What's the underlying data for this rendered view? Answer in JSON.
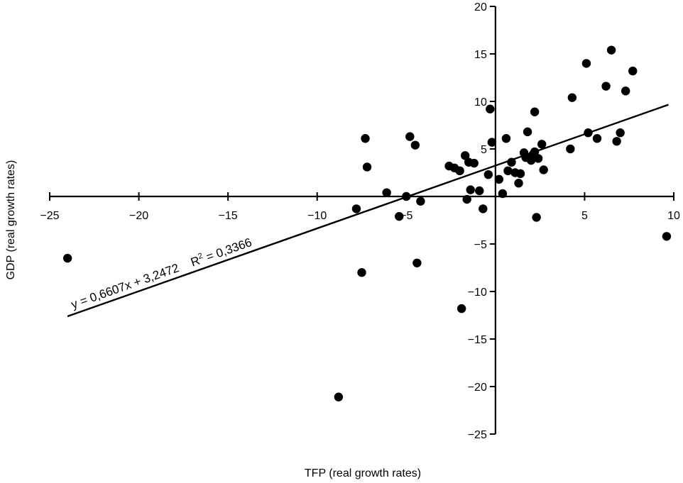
{
  "chart_data": {
    "type": "scatter",
    "xlabel": "TFP (real growth rates)",
    "ylabel": "GDP (real growth rates)",
    "xlim": [
      -25,
      10
    ],
    "ylim": [
      -25,
      20
    ],
    "x_ticks": [
      -25,
      -20,
      -15,
      -10,
      -5,
      5,
      10
    ],
    "y_ticks": [
      20,
      15,
      10,
      5,
      -5,
      -10,
      -15,
      -20,
      -25
    ],
    "x_tick_labels": [
      "-25",
      "-20",
      "-15",
      "-10",
      "-5",
      "5",
      "10"
    ],
    "y_tick_labels": [
      "20",
      "15",
      "10",
      "5",
      "-5",
      "-10",
      "-15",
      "-20",
      "-25"
    ],
    "grid": false,
    "trendline": {
      "slope": 0.6607,
      "intercept": 3.2472,
      "x_range": [
        -24,
        9.7
      ],
      "equation_label": "y = 0,6607x + 3,2472",
      "r2_label_base": "R",
      "r2_label_sup": "2",
      "r2_label_rest": " = 0,3366"
    },
    "points": [
      [
        -24,
        -6.5
      ],
      [
        -8.8,
        -21.1
      ],
      [
        -7.8,
        -1.3
      ],
      [
        -7.5,
        -8.0
      ],
      [
        -7.3,
        6.1
      ],
      [
        -7.2,
        3.1
      ],
      [
        -6.1,
        0.4
      ],
      [
        -5.4,
        -2.1
      ],
      [
        -5.0,
        0.0
      ],
      [
        -4.8,
        6.3
      ],
      [
        -4.5,
        5.4
      ],
      [
        -4.4,
        -7.0
      ],
      [
        -4.2,
        -0.5
      ],
      [
        -2.6,
        3.2
      ],
      [
        -2.3,
        3.0
      ],
      [
        -2.0,
        2.7
      ],
      [
        -1.9,
        -11.8
      ],
      [
        -1.7,
        4.3
      ],
      [
        -1.6,
        -0.3
      ],
      [
        -1.5,
        3.6
      ],
      [
        -1.4,
        0.7
      ],
      [
        -1.2,
        3.5
      ],
      [
        -0.9,
        0.6
      ],
      [
        -0.7,
        -1.3
      ],
      [
        -0.4,
        2.3
      ],
      [
        -0.3,
        9.2
      ],
      [
        -0.2,
        5.7
      ],
      [
        0.2,
        1.8
      ],
      [
        0.4,
        0.3
      ],
      [
        0.6,
        6.1
      ],
      [
        0.7,
        2.7
      ],
      [
        0.9,
        3.6
      ],
      [
        1.1,
        2.5
      ],
      [
        1.3,
        1.4
      ],
      [
        1.4,
        2.4
      ],
      [
        1.6,
        4.6
      ],
      [
        1.7,
        4.1
      ],
      [
        1.8,
        6.8
      ],
      [
        2.0,
        3.8
      ],
      [
        2.1,
        4.4
      ],
      [
        2.2,
        4.7
      ],
      [
        2.2,
        8.9
      ],
      [
        2.3,
        -2.2
      ],
      [
        2.4,
        4.0
      ],
      [
        2.6,
        5.5
      ],
      [
        2.7,
        2.8
      ],
      [
        4.2,
        5.0
      ],
      [
        4.3,
        10.4
      ],
      [
        5.1,
        14.0
      ],
      [
        5.2,
        6.7
      ],
      [
        5.7,
        6.1
      ],
      [
        6.2,
        11.6
      ],
      [
        6.5,
        15.4
      ],
      [
        6.8,
        5.8
      ],
      [
        7.0,
        6.7
      ],
      [
        7.3,
        11.1
      ],
      [
        7.7,
        13.2
      ],
      [
        9.6,
        -4.2
      ]
    ]
  }
}
